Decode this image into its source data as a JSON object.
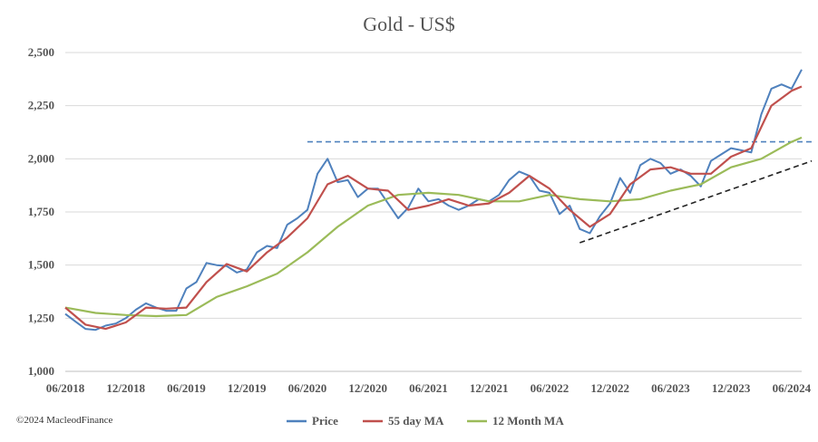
{
  "chart_data": {
    "type": "line",
    "title": "Gold - US$",
    "ylim": [
      1000,
      2500
    ],
    "yticks": [
      1000,
      1250,
      1500,
      1750,
      2000,
      2250,
      2500
    ],
    "ytick_labels": [
      "1,000",
      "1,250",
      "1,500",
      "1,750",
      "2,000",
      "2,250",
      "2,500"
    ],
    "xlim": [
      "2018-06",
      "2024-07"
    ],
    "xticks": [
      "2018-06",
      "2018-12",
      "2019-06",
      "2019-12",
      "2020-06",
      "2020-12",
      "2021-06",
      "2021-12",
      "2022-06",
      "2022-12",
      "2023-06",
      "2023-12",
      "2024-06"
    ],
    "xtick_labels": [
      "06/2018",
      "12/2018",
      "06/2019",
      "12/2019",
      "06/2020",
      "12/2020",
      "06/2021",
      "12/2021",
      "06/2022",
      "12/2022",
      "06/2023",
      "12/2023",
      "06/2024"
    ],
    "grid": "horizontal",
    "legend": "bottom",
    "series": [
      {
        "name": "Price",
        "color": "#4f81bd",
        "x": [
          "2018-06",
          "2018-07",
          "2018-08",
          "2018-09",
          "2018-10",
          "2018-11",
          "2018-12",
          "2019-01",
          "2019-02",
          "2019-03",
          "2019-04",
          "2019-05",
          "2019-06",
          "2019-07",
          "2019-08",
          "2019-09",
          "2019-10",
          "2019-11",
          "2019-12",
          "2020-01",
          "2020-02",
          "2020-03",
          "2020-04",
          "2020-05",
          "2020-06",
          "2020-07",
          "2020-08",
          "2020-09",
          "2020-10",
          "2020-11",
          "2020-12",
          "2021-01",
          "2021-02",
          "2021-03",
          "2021-04",
          "2021-05",
          "2021-06",
          "2021-07",
          "2021-08",
          "2021-09",
          "2021-10",
          "2021-11",
          "2021-12",
          "2022-01",
          "2022-02",
          "2022-03",
          "2022-04",
          "2022-05",
          "2022-06",
          "2022-07",
          "2022-08",
          "2022-09",
          "2022-10",
          "2022-11",
          "2022-12",
          "2023-01",
          "2023-02",
          "2023-03",
          "2023-04",
          "2023-05",
          "2023-06",
          "2023-07",
          "2023-08",
          "2023-09",
          "2023-10",
          "2023-11",
          "2023-12",
          "2024-01",
          "2024-02",
          "2024-03",
          "2024-04",
          "2024-05",
          "2024-06",
          "2024-07"
        ],
        "values": [
          1270,
          1235,
          1200,
          1195,
          1215,
          1225,
          1250,
          1290,
          1320,
          1300,
          1285,
          1285,
          1390,
          1420,
          1510,
          1500,
          1495,
          1465,
          1480,
          1560,
          1590,
          1580,
          1690,
          1720,
          1760,
          1930,
          2000,
          1890,
          1900,
          1820,
          1860,
          1860,
          1790,
          1720,
          1770,
          1860,
          1800,
          1810,
          1780,
          1760,
          1780,
          1810,
          1800,
          1830,
          1900,
          1940,
          1920,
          1850,
          1840,
          1740,
          1780,
          1670,
          1650,
          1730,
          1790,
          1910,
          1840,
          1970,
          2000,
          1980,
          1930,
          1950,
          1920,
          1870,
          1990,
          2020,
          2050,
          2040,
          2030,
          2210,
          2330,
          2350,
          2330,
          2420
        ]
      },
      {
        "name": "55 day MA",
        "color": "#c0504d",
        "x": [
          "2018-06",
          "2018-08",
          "2018-10",
          "2018-12",
          "2019-02",
          "2019-04",
          "2019-06",
          "2019-08",
          "2019-10",
          "2019-12",
          "2020-02",
          "2020-04",
          "2020-06",
          "2020-08",
          "2020-10",
          "2020-12",
          "2021-02",
          "2021-04",
          "2021-06",
          "2021-08",
          "2021-10",
          "2021-12",
          "2022-02",
          "2022-04",
          "2022-06",
          "2022-08",
          "2022-10",
          "2022-12",
          "2023-02",
          "2023-04",
          "2023-06",
          "2023-08",
          "2023-10",
          "2023-12",
          "2024-02",
          "2024-04",
          "2024-06",
          "2024-07"
        ],
        "values": [
          1300,
          1220,
          1200,
          1230,
          1300,
          1295,
          1300,
          1420,
          1505,
          1470,
          1560,
          1630,
          1720,
          1880,
          1920,
          1860,
          1850,
          1760,
          1780,
          1810,
          1780,
          1790,
          1840,
          1920,
          1860,
          1760,
          1680,
          1740,
          1880,
          1950,
          1960,
          1930,
          1930,
          2010,
          2050,
          2250,
          2320,
          2340
        ]
      },
      {
        "name": "12 Month MA",
        "color": "#9bbb59",
        "x": [
          "2018-06",
          "2018-09",
          "2018-12",
          "2019-03",
          "2019-06",
          "2019-09",
          "2019-12",
          "2020-03",
          "2020-06",
          "2020-09",
          "2020-12",
          "2021-03",
          "2021-06",
          "2021-09",
          "2021-12",
          "2022-03",
          "2022-06",
          "2022-09",
          "2022-12",
          "2023-03",
          "2023-06",
          "2023-09",
          "2023-12",
          "2024-03",
          "2024-06",
          "2024-07"
        ],
        "values": [
          1300,
          1275,
          1265,
          1260,
          1265,
          1350,
          1400,
          1460,
          1560,
          1680,
          1780,
          1830,
          1840,
          1830,
          1800,
          1800,
          1830,
          1810,
          1800,
          1810,
          1850,
          1880,
          1960,
          2000,
          2080,
          2100
        ]
      }
    ],
    "annotations": [
      {
        "type": "dashed-line",
        "color": "#4f81bd",
        "from": [
          "2020-06",
          2080
        ],
        "to": [
          "2024-08",
          2080
        ]
      },
      {
        "type": "dashed-line",
        "color": "#222222",
        "from": [
          "2022-09",
          1605
        ],
        "to": [
          "2024-08",
          1990
        ]
      }
    ]
  },
  "copyright": "©2024 MacleodFinance"
}
